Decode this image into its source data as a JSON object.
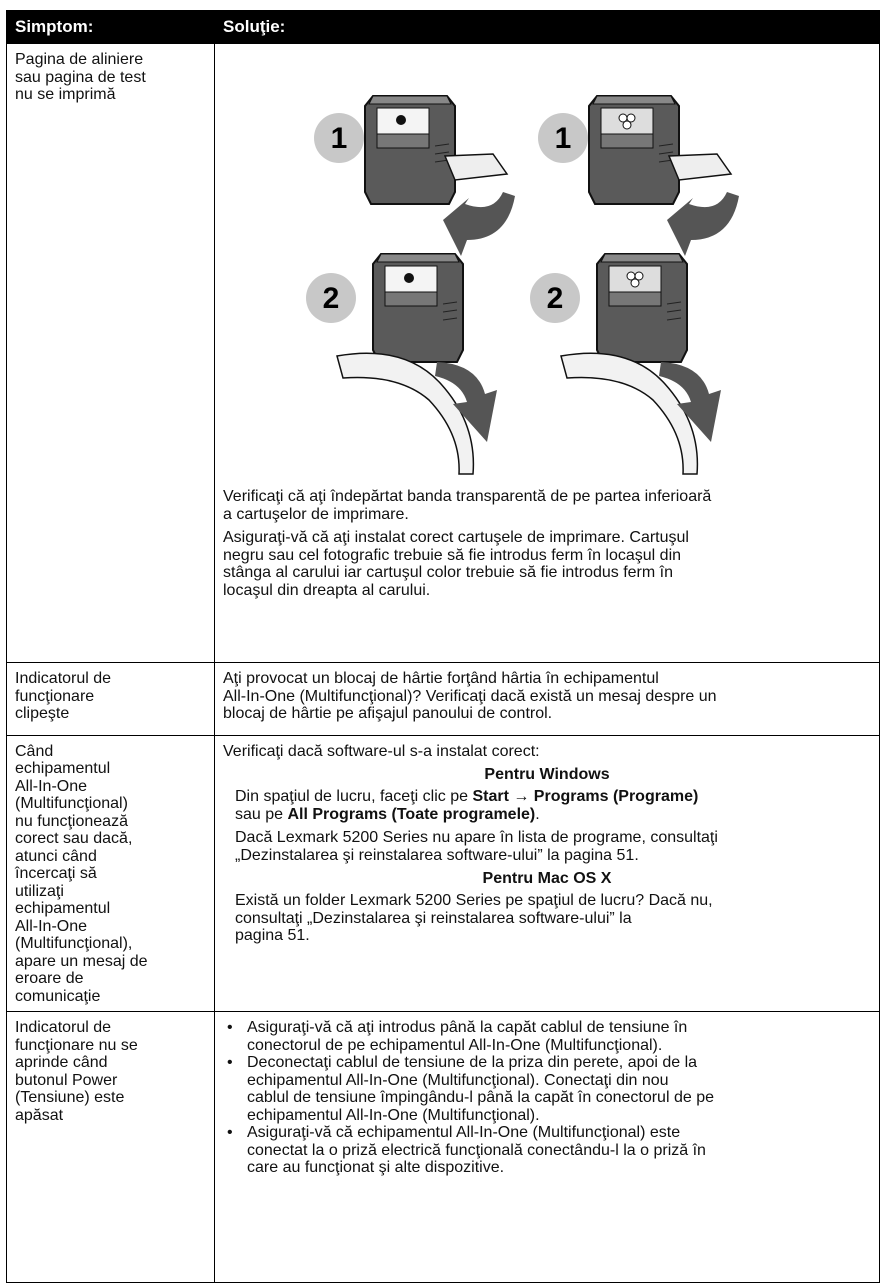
{
  "table": {
    "header": [
      "Simptom:",
      "Soluţie:"
    ],
    "rows": [
      {
        "symptom": [
          "Pagina de aliniere",
          "sau pagina de test",
          "nu se imprimă"
        ],
        "illustration": {
          "badges": [
            "1",
            "1",
            "2",
            "2"
          ]
        },
        "solution": [
          {
            "para": [
              "Verificaţi că aţi îndepărtat banda transparentă de pe partea inferioară",
              "a cartuşelor de imprimare."
            ]
          },
          {
            "para": [
              "Asiguraţi-vă că aţi instalat corect cartuşele de imprimare. Cartuşul",
              "negru sau cel fotografic trebuie să fie introdus ferm în locaşul din",
              "stânga al carului iar cartuşul color trebuie să fie introdus ferm în",
              "locaşul din dreapta al carului."
            ]
          }
        ]
      },
      {
        "symptom": [
          "Indicatorul de",
          "funcţionare",
          "clipeşte"
        ],
        "solution": [
          {
            "para": [
              "Aţi provocat un blocaj de hârtie forţând hârtia în echipamentul",
              "All-In-One (Multifuncţional)? Verificaţi dacă există un mesaj despre un",
              "blocaj de hârtie pe afişajul panoului de control."
            ]
          }
        ]
      },
      {
        "symptom": [
          "Când",
          "echipamentul",
          "All-In-One",
          "(Multifuncţional)",
          "nu funcţionează",
          "corect sau dacă,",
          "atunci când",
          "încercaţi să",
          "utilizaţi",
          "echipamentul",
          "All-In-One",
          "(Multifuncţional),",
          "apare un mesaj de",
          "eroare de",
          "comunicaţie"
        ],
        "solution": [
          {
            "para": [
              "Verificaţi dacă software-ul s-a instalat corect:"
            ]
          },
          {
            "heading": "Pentru Windows"
          },
          {
            "indented": [
              [
                {
                  "text": "Din spaţiul de lucru, faceţi clic pe "
                },
                {
                  "text": "Start → Programs (Programe)",
                  "bold": true
                }
              ],
              [
                {
                  "text": "sau pe "
                },
                {
                  "text": "All Programs (Toate programele)",
                  "bold": true
                },
                {
                  "text": "."
                }
              ]
            ]
          },
          {
            "indented": [
              "Dacă Lexmark 5200 Series nu apare în lista de programe, consultaţi",
              "„Dezinstalarea şi reinstalarea software-ului” la pagina 51."
            ]
          },
          {
            "heading": "Pentru Mac OS X"
          },
          {
            "indented": [
              "Există un folder Lexmark 5200 Series pe spaţiul de lucru? Dacă nu,",
              "consultaţi „Dezinstalarea şi reinstalarea software-ului” la",
              "pagina 51."
            ]
          }
        ]
      },
      {
        "symptom": [
          "Indicatorul de",
          "funcţionare nu se",
          "aprinde când",
          "butonul Power",
          "(Tensiune) este",
          "apăsat"
        ],
        "solution": [
          {
            "bullets": [
              [
                "Asiguraţi-vă că aţi introdus până la capăt cablul de tensiune în",
                "conectorul de pe echipamentul All-In-One (Multifuncţional)."
              ],
              [
                "Deconectaţi cablul de tensiune de la priza din perete, apoi de la",
                "echipamentul All-In-One (Multifuncţional). Conectaţi din nou",
                "cablul de tensiune împingându-l până la capăt în conectorul de pe",
                "echipamentul All-In-One (Multifuncţional)."
              ],
              [
                "Asiguraţi-vă că echipamentul All-In-One (Multifuncţional) este",
                "conectat la o priză electrică funcţională conectându-l la o priză în",
                "care au funcţionat şi alte dispozitive."
              ]
            ]
          }
        ]
      }
    ]
  }
}
